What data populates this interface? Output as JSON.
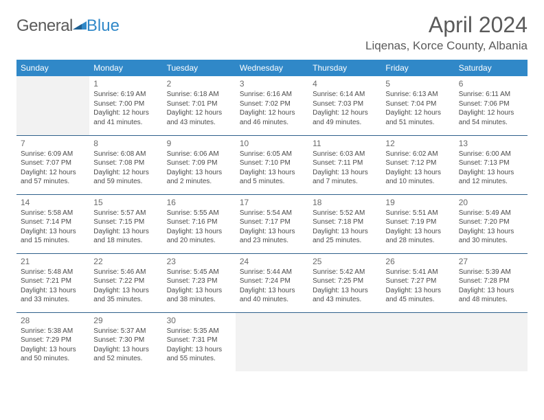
{
  "brand": {
    "general": "General",
    "blue": "Blue"
  },
  "title": "April 2024",
  "location": "Liqenas, Korce County, Albania",
  "colors": {
    "header_bg": "#3088c8",
    "header_text": "#ffffff",
    "rule": "#2d5f8a",
    "empty_bg": "#f2f2f2",
    "text": "#4a4a4a",
    "title_text": "#5a5a5a"
  },
  "weekdays": [
    "Sunday",
    "Monday",
    "Tuesday",
    "Wednesday",
    "Thursday",
    "Friday",
    "Saturday"
  ],
  "layout": {
    "leading_blanks": 1,
    "trailing_blanks": 4
  },
  "days": [
    {
      "n": 1,
      "sr": "6:19 AM",
      "ss": "7:00 PM",
      "dl": "12 hours and 41 minutes."
    },
    {
      "n": 2,
      "sr": "6:18 AM",
      "ss": "7:01 PM",
      "dl": "12 hours and 43 minutes."
    },
    {
      "n": 3,
      "sr": "6:16 AM",
      "ss": "7:02 PM",
      "dl": "12 hours and 46 minutes."
    },
    {
      "n": 4,
      "sr": "6:14 AM",
      "ss": "7:03 PM",
      "dl": "12 hours and 49 minutes."
    },
    {
      "n": 5,
      "sr": "6:13 AM",
      "ss": "7:04 PM",
      "dl": "12 hours and 51 minutes."
    },
    {
      "n": 6,
      "sr": "6:11 AM",
      "ss": "7:06 PM",
      "dl": "12 hours and 54 minutes."
    },
    {
      "n": 7,
      "sr": "6:09 AM",
      "ss": "7:07 PM",
      "dl": "12 hours and 57 minutes."
    },
    {
      "n": 8,
      "sr": "6:08 AM",
      "ss": "7:08 PM",
      "dl": "12 hours and 59 minutes."
    },
    {
      "n": 9,
      "sr": "6:06 AM",
      "ss": "7:09 PM",
      "dl": "13 hours and 2 minutes."
    },
    {
      "n": 10,
      "sr": "6:05 AM",
      "ss": "7:10 PM",
      "dl": "13 hours and 5 minutes."
    },
    {
      "n": 11,
      "sr": "6:03 AM",
      "ss": "7:11 PM",
      "dl": "13 hours and 7 minutes."
    },
    {
      "n": 12,
      "sr": "6:02 AM",
      "ss": "7:12 PM",
      "dl": "13 hours and 10 minutes."
    },
    {
      "n": 13,
      "sr": "6:00 AM",
      "ss": "7:13 PM",
      "dl": "13 hours and 12 minutes."
    },
    {
      "n": 14,
      "sr": "5:58 AM",
      "ss": "7:14 PM",
      "dl": "13 hours and 15 minutes."
    },
    {
      "n": 15,
      "sr": "5:57 AM",
      "ss": "7:15 PM",
      "dl": "13 hours and 18 minutes."
    },
    {
      "n": 16,
      "sr": "5:55 AM",
      "ss": "7:16 PM",
      "dl": "13 hours and 20 minutes."
    },
    {
      "n": 17,
      "sr": "5:54 AM",
      "ss": "7:17 PM",
      "dl": "13 hours and 23 minutes."
    },
    {
      "n": 18,
      "sr": "5:52 AM",
      "ss": "7:18 PM",
      "dl": "13 hours and 25 minutes."
    },
    {
      "n": 19,
      "sr": "5:51 AM",
      "ss": "7:19 PM",
      "dl": "13 hours and 28 minutes."
    },
    {
      "n": 20,
      "sr": "5:49 AM",
      "ss": "7:20 PM",
      "dl": "13 hours and 30 minutes."
    },
    {
      "n": 21,
      "sr": "5:48 AM",
      "ss": "7:21 PM",
      "dl": "13 hours and 33 minutes."
    },
    {
      "n": 22,
      "sr": "5:46 AM",
      "ss": "7:22 PM",
      "dl": "13 hours and 35 minutes."
    },
    {
      "n": 23,
      "sr": "5:45 AM",
      "ss": "7:23 PM",
      "dl": "13 hours and 38 minutes."
    },
    {
      "n": 24,
      "sr": "5:44 AM",
      "ss": "7:24 PM",
      "dl": "13 hours and 40 minutes."
    },
    {
      "n": 25,
      "sr": "5:42 AM",
      "ss": "7:25 PM",
      "dl": "13 hours and 43 minutes."
    },
    {
      "n": 26,
      "sr": "5:41 AM",
      "ss": "7:27 PM",
      "dl": "13 hours and 45 minutes."
    },
    {
      "n": 27,
      "sr": "5:39 AM",
      "ss": "7:28 PM",
      "dl": "13 hours and 48 minutes."
    },
    {
      "n": 28,
      "sr": "5:38 AM",
      "ss": "7:29 PM",
      "dl": "13 hours and 50 minutes."
    },
    {
      "n": 29,
      "sr": "5:37 AM",
      "ss": "7:30 PM",
      "dl": "13 hours and 52 minutes."
    },
    {
      "n": 30,
      "sr": "5:35 AM",
      "ss": "7:31 PM",
      "dl": "13 hours and 55 minutes."
    }
  ],
  "labels": {
    "sunrise": "Sunrise:",
    "sunset": "Sunset:",
    "daylight": "Daylight:"
  }
}
